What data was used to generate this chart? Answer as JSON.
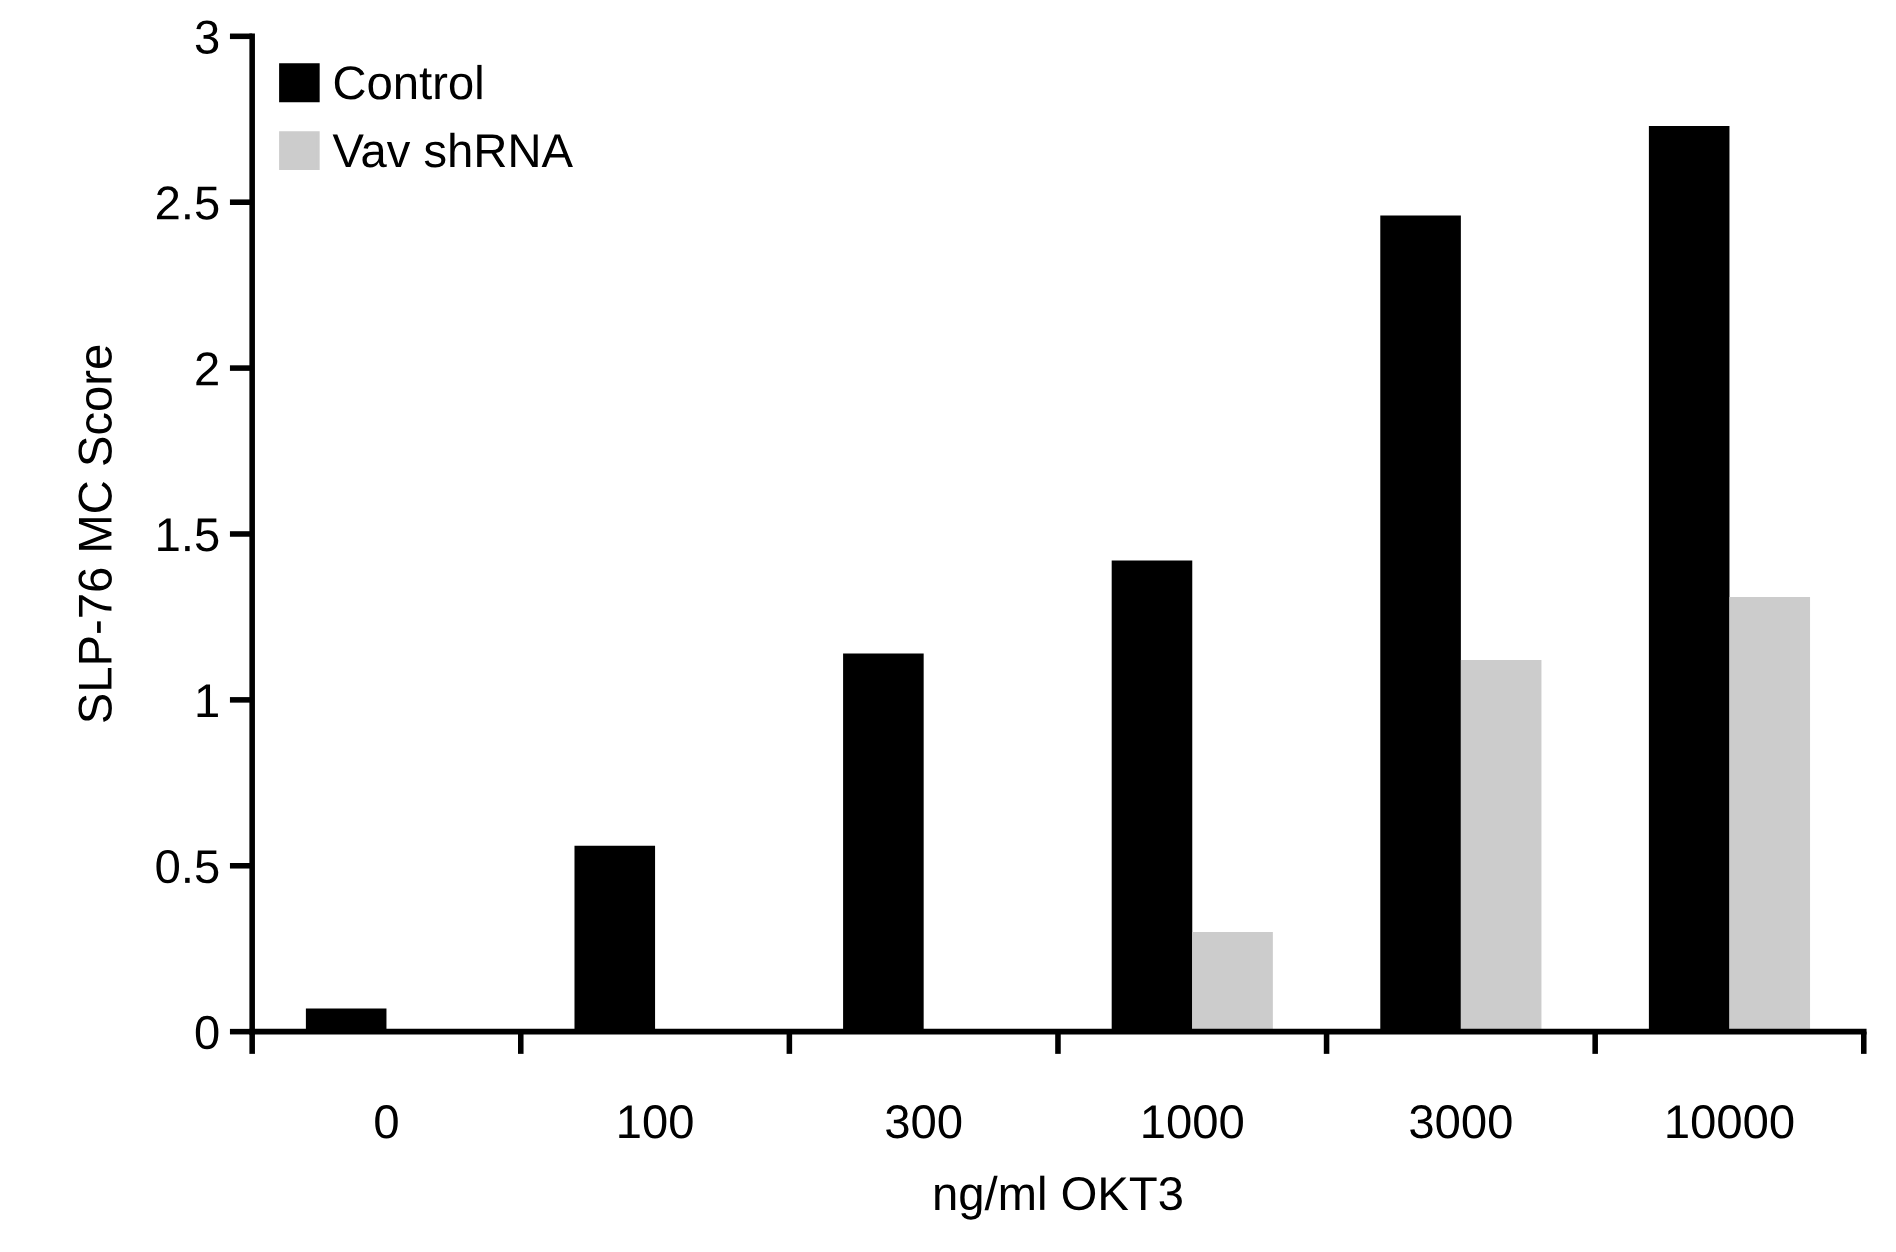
{
  "chart_data": {
    "type": "bar",
    "xlabel": "ng/ml OKT3",
    "ylabel": "SLP-76 MC Score",
    "categories": [
      "0",
      "100",
      "300",
      "1000",
      "3000",
      "10000"
    ],
    "series": [
      {
        "name": "Control",
        "color": "#000000",
        "values": [
          0.07,
          0.56,
          1.14,
          1.42,
          2.46,
          2.73
        ]
      },
      {
        "name": "Vav shRNA",
        "color": "#cccccc",
        "values": [
          0,
          0,
          0,
          0.3,
          1.12,
          1.31
        ]
      }
    ],
    "ylim": [
      0,
      3
    ],
    "yticks": [
      0,
      0.5,
      1,
      1.5,
      2,
      2.5,
      3
    ],
    "grid": false,
    "legend": "top left"
  }
}
